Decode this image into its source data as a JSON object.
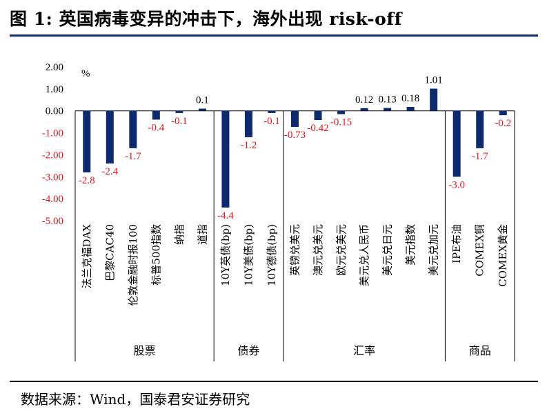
{
  "figure": {
    "title": "图 1:  英国病毒变异的冲击下，海外出现 risk-off",
    "source": "数据来源：Wind，国泰君安证券研究"
  },
  "chart_data": {
    "type": "bar",
    "unit_label": "%",
    "ylim": [
      -5.0,
      2.0
    ],
    "yticks": [
      "2.00",
      "1.00",
      "0.00",
      "-1.00",
      "-2.00",
      "-3.00",
      "-4.00",
      "-5.00"
    ],
    "categories": [
      "法兰克福DAX",
      "巴黎CAC40",
      "伦敦金融时报100",
      "标普500指数",
      "纳指",
      "道指",
      "10Y英债(bp)",
      "10Y美债(bp)",
      "10Y德债(bp)",
      "英镑兑美元",
      "澳元兑美元",
      "欧元兑美元",
      "美元兑人民币",
      "美元兑日元",
      "美元指数",
      "美元兑加元",
      "IPE布油",
      "COMEX铜",
      "COMEX黄金"
    ],
    "values": [
      -2.8,
      -2.4,
      -1.7,
      -0.4,
      -0.1,
      0.1,
      -4.4,
      -1.2,
      -0.1,
      -0.73,
      -0.42,
      -0.15,
      0.12,
      0.13,
      0.18,
      1.01,
      -3.0,
      -1.7,
      -0.2
    ],
    "value_labels": [
      "-2.8",
      "-2.4",
      "-1.7",
      "-0.4",
      "-0.1",
      "0.1",
      "-4.4",
      "-1.2",
      "-0.1",
      "-0.73",
      "-0.42",
      "-0.15",
      "0.12",
      "0.13",
      "0.18",
      "1.01",
      "-3.0",
      "-1.7",
      "-0.2"
    ],
    "groups": [
      {
        "name": "股票",
        "start": 0,
        "end": 5
      },
      {
        "name": "债券",
        "start": 6,
        "end": 8
      },
      {
        "name": "汇率",
        "start": 9,
        "end": 15
      },
      {
        "name": "商品",
        "start": 16,
        "end": 18
      }
    ],
    "bar_color": "#0d2a6e",
    "positive_label_color": "#000000",
    "negative_label_color": "#e8141c",
    "grid": false,
    "legend": "none"
  }
}
